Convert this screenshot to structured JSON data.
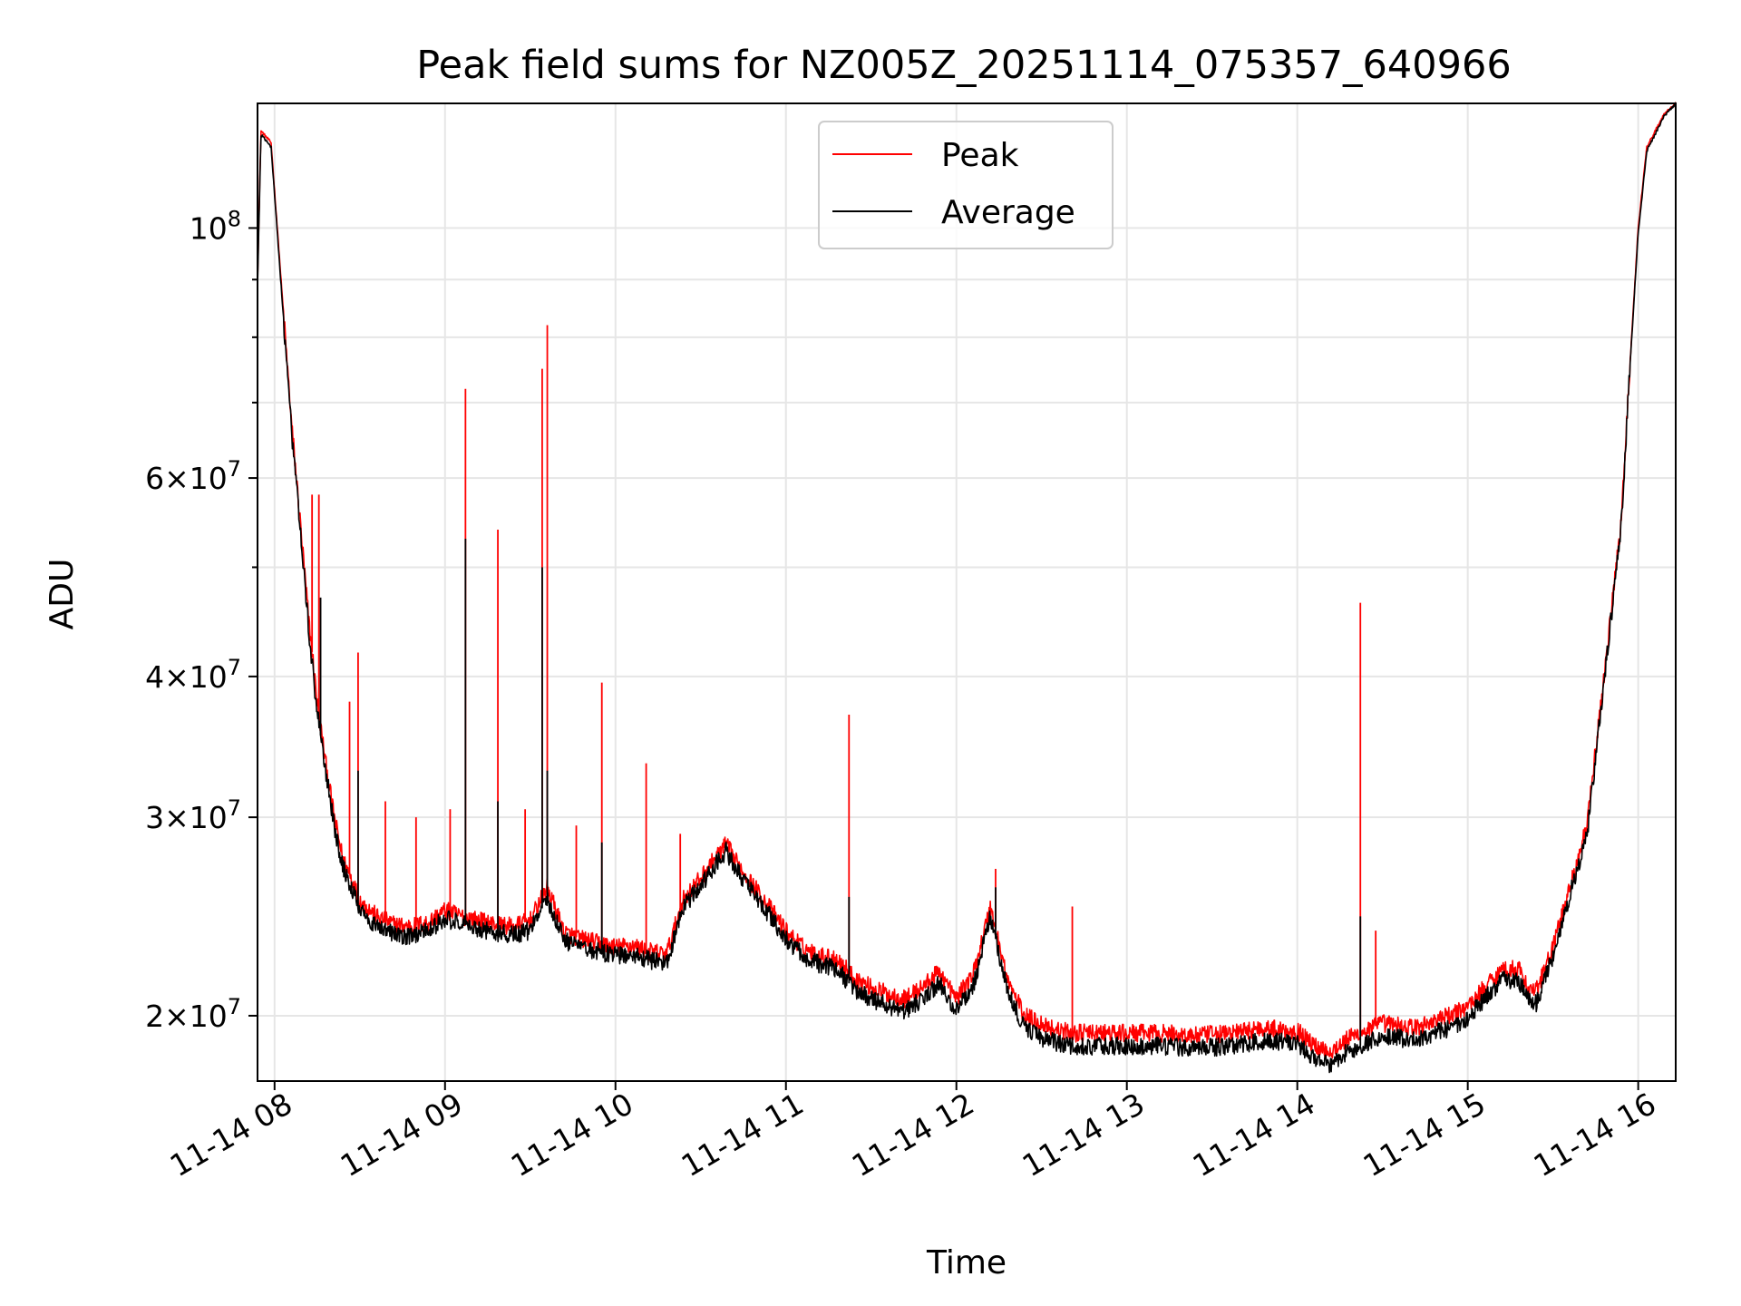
{
  "chart_data": {
    "type": "line",
    "title": "Peak field sums for NZ005Z_20251114_075357_640966",
    "xlabel": "Time",
    "ylabel": "ADU",
    "x_ticks": [
      "11-14 08",
      "11-14 09",
      "11-14 10",
      "11-14 11",
      "11-14 12",
      "11-14 13",
      "11-14 14",
      "11-14 15",
      "11-14 16"
    ],
    "x_tick_hours": [
      8,
      9,
      10,
      11,
      12,
      13,
      14,
      15,
      16
    ],
    "x_range_hours": [
      7.9,
      16.22
    ],
    "y_scale": "log",
    "ylim": [
      17500000,
      129000000
    ],
    "y_major_ticks": [
      {
        "value": 100000000,
        "mantissa": "",
        "exponent": "8"
      },
      {
        "value": 60000000,
        "mantissa": "6",
        "exponent": "7"
      },
      {
        "value": 40000000,
        "mantissa": "4",
        "exponent": "7"
      },
      {
        "value": 30000000,
        "mantissa": "3",
        "exponent": "7"
      },
      {
        "value": 20000000,
        "mantissa": "2",
        "exponent": "7"
      }
    ],
    "y_minor_gridlines": [
      50000000,
      70000000,
      80000000,
      90000000
    ],
    "grid": true,
    "legend_position": "top-center",
    "series": [
      {
        "name": "Peak",
        "color": "#ff0000",
        "points": [
          [
            7.9,
            90000000
          ],
          [
            7.92,
            122000000
          ],
          [
            7.98,
            119000000
          ],
          [
            8.0,
            108000000
          ],
          [
            8.05,
            85000000
          ],
          [
            8.1,
            67000000
          ],
          [
            8.15,
            55000000
          ],
          [
            8.2,
            45000000
          ],
          [
            8.25,
            38000000
          ],
          [
            8.3,
            33500000
          ],
          [
            8.35,
            30000000
          ],
          [
            8.4,
            27600000
          ],
          [
            8.45,
            26500000
          ],
          [
            8.5,
            25300000
          ],
          [
            8.6,
            24500000
          ],
          [
            8.7,
            24100000
          ],
          [
            8.8,
            24000000
          ],
          [
            8.9,
            24200000
          ],
          [
            9.0,
            24800000
          ],
          [
            9.1,
            24500000
          ],
          [
            9.2,
            24300000
          ],
          [
            9.3,
            24100000
          ],
          [
            9.4,
            24000000
          ],
          [
            9.5,
            24300000
          ],
          [
            9.6,
            26000000
          ],
          [
            9.7,
            23700000
          ],
          [
            9.8,
            23400000
          ],
          [
            9.9,
            23200000
          ],
          [
            10.0,
            23000000
          ],
          [
            10.1,
            23100000
          ],
          [
            10.2,
            22800000
          ],
          [
            10.3,
            22700000
          ],
          [
            10.4,
            25400000
          ],
          [
            10.5,
            26500000
          ],
          [
            10.6,
            27800000
          ],
          [
            10.65,
            28400000
          ],
          [
            10.7,
            27500000
          ],
          [
            10.8,
            26200000
          ],
          [
            10.9,
            25000000
          ],
          [
            11.0,
            23800000
          ],
          [
            11.1,
            23000000
          ],
          [
            11.2,
            22600000
          ],
          [
            11.3,
            22500000
          ],
          [
            11.4,
            21600000
          ],
          [
            11.5,
            21200000
          ],
          [
            11.6,
            20900000
          ],
          [
            11.7,
            20700000
          ],
          [
            11.8,
            21200000
          ],
          [
            11.9,
            21900000
          ],
          [
            12.0,
            20700000
          ],
          [
            12.1,
            21800000
          ],
          [
            12.2,
            25000000
          ],
          [
            12.3,
            21500000
          ],
          [
            12.4,
            20000000
          ],
          [
            12.5,
            19700000
          ],
          [
            12.6,
            19400000
          ],
          [
            12.7,
            19300000
          ],
          [
            12.8,
            19300000
          ],
          [
            12.9,
            19300000
          ],
          [
            13.0,
            19300000
          ],
          [
            13.2,
            19300000
          ],
          [
            13.4,
            19200000
          ],
          [
            13.6,
            19300000
          ],
          [
            13.8,
            19500000
          ],
          [
            14.0,
            19400000
          ],
          [
            14.1,
            18800000
          ],
          [
            14.2,
            18600000
          ],
          [
            14.3,
            19100000
          ],
          [
            14.4,
            19400000
          ],
          [
            14.5,
            19700000
          ],
          [
            14.6,
            19600000
          ],
          [
            14.7,
            19500000
          ],
          [
            14.8,
            19800000
          ],
          [
            14.9,
            20000000
          ],
          [
            15.0,
            20400000
          ],
          [
            15.1,
            21200000
          ],
          [
            15.2,
            22000000
          ],
          [
            15.3,
            22000000
          ],
          [
            15.35,
            21200000
          ],
          [
            15.4,
            21000000
          ],
          [
            15.5,
            23000000
          ],
          [
            15.6,
            26000000
          ],
          [
            15.7,
            29500000
          ],
          [
            15.8,
            40000000
          ],
          [
            15.9,
            55000000
          ],
          [
            15.95,
            75000000
          ],
          [
            16.0,
            100000000
          ],
          [
            16.05,
            118000000
          ],
          [
            16.15,
            126000000
          ],
          [
            16.22,
            129000000
          ]
        ],
        "spikes": [
          [
            8.22,
            58000000
          ],
          [
            8.26,
            58000000
          ],
          [
            8.44,
            38000000
          ],
          [
            8.49,
            42000000
          ],
          [
            8.65,
            31000000
          ],
          [
            8.83,
            30000000
          ],
          [
            9.03,
            30500000
          ],
          [
            9.12,
            72000000
          ],
          [
            9.31,
            54000000
          ],
          [
            9.47,
            30500000
          ],
          [
            9.57,
            75000000
          ],
          [
            9.6,
            82000000
          ],
          [
            9.77,
            29500000
          ],
          [
            9.92,
            39500000
          ],
          [
            10.18,
            33500000
          ],
          [
            10.38,
            29000000
          ],
          [
            11.37,
            37000000
          ],
          [
            12.23,
            27000000
          ],
          [
            12.68,
            25000000
          ],
          [
            14.37,
            46500000
          ],
          [
            14.46,
            23800000
          ]
        ]
      },
      {
        "name": "Average",
        "color": "#000000",
        "points": [
          [
            7.9,
            89000000
          ],
          [
            7.92,
            121000000
          ],
          [
            7.98,
            118000000
          ],
          [
            8.0,
            107000000
          ],
          [
            8.05,
            84000000
          ],
          [
            8.1,
            66000000
          ],
          [
            8.15,
            54000000
          ],
          [
            8.2,
            44000000
          ],
          [
            8.25,
            37200000
          ],
          [
            8.3,
            33000000
          ],
          [
            8.35,
            29500000
          ],
          [
            8.4,
            27100000
          ],
          [
            8.45,
            26000000
          ],
          [
            8.5,
            24800000
          ],
          [
            8.6,
            24000000
          ],
          [
            8.7,
            23600000
          ],
          [
            8.8,
            23500000
          ],
          [
            8.9,
            23800000
          ],
          [
            9.0,
            24400000
          ],
          [
            9.1,
            24100000
          ],
          [
            9.2,
            23900000
          ],
          [
            9.3,
            23700000
          ],
          [
            9.4,
            23600000
          ],
          [
            9.5,
            23800000
          ],
          [
            9.6,
            25400000
          ],
          [
            9.7,
            23300000
          ],
          [
            9.8,
            23000000
          ],
          [
            9.9,
            22800000
          ],
          [
            10.0,
            22600000
          ],
          [
            10.1,
            22700000
          ],
          [
            10.2,
            22400000
          ],
          [
            10.3,
            22300000
          ],
          [
            10.4,
            25000000
          ],
          [
            10.5,
            26100000
          ],
          [
            10.6,
            27400000
          ],
          [
            10.65,
            28000000
          ],
          [
            10.7,
            27100000
          ],
          [
            10.8,
            25800000
          ],
          [
            10.9,
            24600000
          ],
          [
            11.0,
            23400000
          ],
          [
            11.1,
            22600000
          ],
          [
            11.2,
            22200000
          ],
          [
            11.3,
            22000000
          ],
          [
            11.4,
            21100000
          ],
          [
            11.5,
            20700000
          ],
          [
            11.6,
            20400000
          ],
          [
            11.7,
            20200000
          ],
          [
            11.8,
            20700000
          ],
          [
            11.9,
            21400000
          ],
          [
            12.0,
            20200000
          ],
          [
            12.1,
            21300000
          ],
          [
            12.2,
            24500000
          ],
          [
            12.3,
            21000000
          ],
          [
            12.4,
            19500000
          ],
          [
            12.5,
            19100000
          ],
          [
            12.6,
            18900000
          ],
          [
            12.7,
            18800000
          ],
          [
            12.8,
            18800000
          ],
          [
            12.9,
            18800000
          ],
          [
            13.0,
            18800000
          ],
          [
            13.2,
            18800000
          ],
          [
            13.4,
            18700000
          ],
          [
            13.6,
            18800000
          ],
          [
            13.8,
            19000000
          ],
          [
            14.0,
            18900000
          ],
          [
            14.1,
            18300000
          ],
          [
            14.2,
            18100000
          ],
          [
            14.3,
            18600000
          ],
          [
            14.4,
            18900000
          ],
          [
            14.5,
            19200000
          ],
          [
            14.6,
            19100000
          ],
          [
            14.7,
            19000000
          ],
          [
            14.8,
            19300000
          ],
          [
            14.9,
            19500000
          ],
          [
            15.0,
            19900000
          ],
          [
            15.1,
            20700000
          ],
          [
            15.2,
            21500000
          ],
          [
            15.3,
            21500000
          ],
          [
            15.35,
            20700000
          ],
          [
            15.4,
            20500000
          ],
          [
            15.5,
            22600000
          ],
          [
            15.6,
            25600000
          ],
          [
            15.7,
            29000000
          ],
          [
            15.8,
            39500000
          ],
          [
            15.9,
            54500000
          ],
          [
            15.95,
            74500000
          ],
          [
            16.0,
            99000000
          ],
          [
            16.05,
            117000000
          ],
          [
            16.15,
            125500000
          ],
          [
            16.22,
            129000000
          ]
        ],
        "spikes": [
          [
            8.27,
            47000000
          ],
          [
            8.49,
            33000000
          ],
          [
            9.12,
            53000000
          ],
          [
            9.31,
            31000000
          ],
          [
            9.57,
            50000000
          ],
          [
            9.6,
            33000000
          ],
          [
            9.92,
            28500000
          ],
          [
            11.37,
            25500000
          ],
          [
            12.23,
            26000000
          ],
          [
            14.37,
            24500000
          ]
        ]
      }
    ]
  }
}
